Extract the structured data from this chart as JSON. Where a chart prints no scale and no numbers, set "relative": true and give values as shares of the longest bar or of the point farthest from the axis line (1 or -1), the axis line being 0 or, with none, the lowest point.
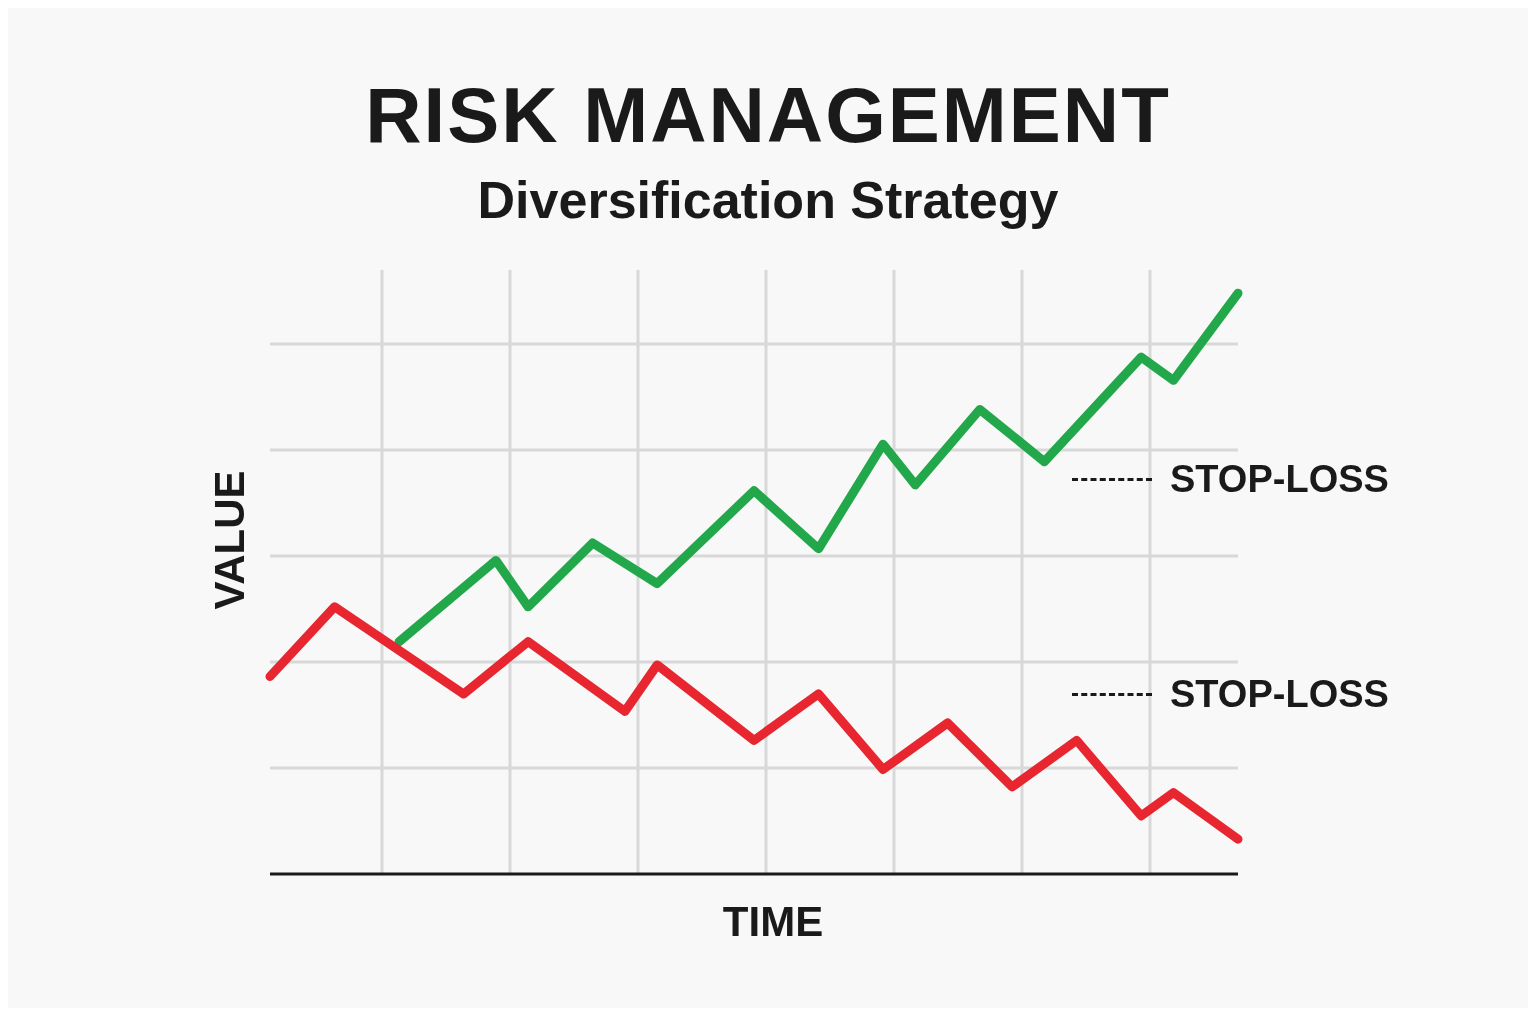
{
  "chart_data": {
    "type": "line",
    "title": "RISK MANAGEMENT",
    "subtitle": "Diversification Strategy",
    "xlabel": "TIME",
    "ylabel": "VALUE",
    "relative": true,
    "grid": true,
    "marker": "none",
    "line_style": "solid",
    "categories": [
      null,
      null,
      null,
      null,
      null,
      null,
      null,
      null,
      null,
      null,
      null,
      null,
      null,
      null,
      null,
      null,
      null,
      null,
      null,
      null,
      null,
      null,
      null,
      null,
      null,
      null,
      null,
      null,
      null,
      null,
      null
    ],
    "series": [
      {
        "color": "#22a84a",
        "values": [
          null,
          null,
          null,
          null,
          0.4,
          null,
          null,
          0.54,
          0.46,
          null,
          0.57,
          null,
          0.5,
          null,
          null,
          0.66,
          null,
          0.56,
          null,
          0.74,
          0.67,
          null,
          0.8,
          null,
          0.71,
          null,
          null,
          0.89,
          0.85,
          null,
          1
        ]
      },
      {
        "color": "#e8262f",
        "values": [
          0.34,
          null,
          0.46,
          null,
          null,
          null,
          0.31,
          null,
          0.4,
          null,
          null,
          0.28,
          0.36,
          null,
          null,
          0.23,
          null,
          0.31,
          null,
          0.18,
          null,
          0.26,
          null,
          0.15,
          null,
          0.23,
          null,
          0.1,
          0.14,
          null,
          0.06
        ]
      }
    ],
    "annotations": [
      "STOP-LOSS",
      "STOP-LOSS"
    ]
  }
}
